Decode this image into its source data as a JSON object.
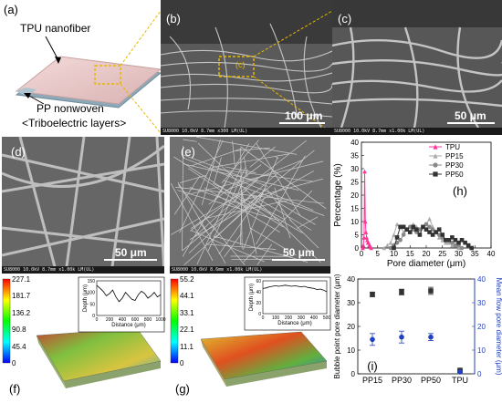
{
  "panel_a": {
    "label": "(a)",
    "tpu_label": "TPU nanofiber",
    "pp_label": "PP nonwoven",
    "layers_label": "<Triboelectric layers>"
  },
  "panel_b": {
    "label": "(b)",
    "zoom_label": "(c)",
    "scale": "100 μm",
    "info": "SU8000 10.0kV 8.7mm x300 LM(UL)"
  },
  "panel_c": {
    "label": "(c)",
    "scale": "50 μm",
    "info": "SU8000 10.0kV 8.7mm x1.00k LM(UL)"
  },
  "panel_d": {
    "label": "(d)",
    "scale": "50 μm",
    "info": "SU8000 10.0kV 8.7mm x1.00k LM(UL)"
  },
  "panel_e": {
    "label": "(e)",
    "scale": "50 μm",
    "info": "SU8000 10.0kV 8.6mm x1.00k LM(UL)"
  },
  "panel_f": {
    "label": "(f)",
    "colorbar": [
      "227.1",
      "181.7",
      "136.2",
      "90.8",
      "45.4",
      "0"
    ],
    "colorbar_colors": [
      "#ff0000",
      "#ffff00",
      "#00ff00",
      "#00ffff",
      "#0000ff"
    ]
  },
  "panel_g": {
    "label": "(g)",
    "colorbar": [
      "55.2",
      "44.1",
      "33.1",
      "22.1",
      "11.1",
      "0"
    ],
    "colorbar_colors": [
      "#ff0000",
      "#ffff00",
      "#00ff00",
      "#00ffff",
      "#0000ff"
    ]
  },
  "chart_data": [
    {
      "id": "h",
      "type": "line",
      "panel_label": "(h)",
      "xlabel": "Pore diameter (μm)",
      "ylabel": "Percentage (%)",
      "xlim": [
        0,
        40
      ],
      "ylim": [
        0,
        40
      ],
      "xticks": [
        "0",
        "5",
        "10",
        "15",
        "20",
        "25",
        "30",
        "35",
        "40"
      ],
      "yticks": [
        "0",
        "5",
        "10",
        "15",
        "20",
        "25",
        "30",
        "35",
        "40"
      ],
      "legend_position": "top-right",
      "series": [
        {
          "name": "TPU",
          "color": "#ff3399",
          "marker": "triangle",
          "x": [
            0.4,
            0.6,
            0.8,
            1.0,
            1.2,
            1.4,
            1.6,
            1.8,
            2.0,
            2.2,
            2.4,
            2.6,
            2.8,
            3.0
          ],
          "y": [
            0,
            1,
            4,
            29,
            10,
            6,
            4,
            3,
            2,
            2,
            1,
            1,
            0.5,
            0
          ]
        },
        {
          "name": "PP15",
          "color": "#aaaaaa",
          "marker": "triangle",
          "x": [
            7,
            8,
            9,
            10,
            11,
            12,
            13,
            14,
            15,
            16,
            17,
            18,
            19,
            20,
            21,
            22,
            23,
            24,
            25,
            26,
            27,
            28,
            29,
            30
          ],
          "y": [
            0,
            1,
            2,
            5,
            9,
            8,
            6,
            7,
            8,
            9,
            8,
            7,
            8,
            9,
            11,
            8,
            6,
            4,
            3,
            2,
            2,
            1,
            1,
            0
          ]
        },
        {
          "name": "PP30",
          "color": "#888888",
          "marker": "circle",
          "x": [
            9,
            10,
            11,
            12,
            13,
            14,
            15,
            16,
            17,
            18,
            19,
            20,
            21,
            22,
            23,
            24,
            25,
            26,
            27,
            28,
            29,
            30,
            31
          ],
          "y": [
            0,
            1,
            2,
            3,
            5,
            7,
            8,
            7,
            6,
            7,
            8,
            9,
            8,
            7,
            6,
            5,
            4,
            3,
            3,
            2,
            1,
            1,
            0
          ]
        },
        {
          "name": "PP50",
          "color": "#333333",
          "marker": "square",
          "x": [
            10,
            11,
            12,
            13,
            14,
            15,
            16,
            17,
            18,
            19,
            20,
            21,
            22,
            23,
            24,
            25,
            26,
            27,
            28,
            29,
            30,
            31,
            32,
            33,
            34
          ],
          "y": [
            0,
            4,
            8,
            8,
            7,
            6,
            8,
            7,
            5,
            8,
            7,
            6,
            5,
            6,
            7,
            5,
            3,
            3,
            4,
            3,
            2,
            3,
            2,
            1,
            0
          ]
        }
      ]
    },
    {
      "id": "i",
      "type": "scatter",
      "panel_label": "(i)",
      "categories": [
        "PP15",
        "PP30",
        "PP50",
        "TPU"
      ],
      "ylabel_left": "Bubble point pore diameter (μm)",
      "ylabel_right": "Mean flow pore diameter (μm)",
      "ylim_left": [
        0,
        40
      ],
      "ylim_right": [
        0,
        40
      ],
      "yticks": [
        "0",
        "10",
        "20",
        "30",
        "40"
      ],
      "series": [
        {
          "name": "Bubble point pore diameter",
          "axis": "left",
          "color": "#333333",
          "marker": "square",
          "values": [
            33.5,
            34.5,
            35.0,
            1.5
          ],
          "errors": [
            1.0,
            1.2,
            1.5,
            0.3
          ]
        },
        {
          "name": "Mean flow pore diameter",
          "axis": "right",
          "color": "#1f3fbf",
          "marker": "circle",
          "values": [
            14.5,
            15.5,
            15.5,
            0.8
          ],
          "errors": [
            2.5,
            2.5,
            1.5,
            0.3
          ]
        }
      ]
    },
    {
      "id": "f_inset",
      "type": "line",
      "xlabel": "Distance (μm)",
      "ylabel": "Depth (μm)",
      "xlim": [
        0,
        1000
      ],
      "ylim": [
        0,
        150
      ],
      "xticks": [
        "0",
        "200",
        "400",
        "600",
        "800",
        "1000"
      ],
      "yticks": [
        "0",
        "50",
        "100",
        "150"
      ],
      "series": [
        {
          "x": [
            0,
            50,
            100,
            150,
            200,
            250,
            300,
            350,
            400,
            450,
            500,
            550,
            600,
            650,
            700,
            750,
            800,
            850,
            900,
            950,
            1000
          ],
          "y": [
            130,
            118,
            105,
            85,
            95,
            110,
            80,
            60,
            75,
            100,
            85,
            70,
            65,
            90,
            105,
            95,
            75,
            85,
            100,
            80,
            90
          ]
        }
      ]
    },
    {
      "id": "g_inset",
      "type": "line",
      "xlabel": "Distance (μm)",
      "ylabel": "Depth (μm)",
      "xlim": [
        0,
        500
      ],
      "ylim": [
        0,
        60
      ],
      "xticks": [
        "0",
        "100",
        "200",
        "300",
        "400",
        "500"
      ],
      "yticks": [
        "0",
        "20",
        "40",
        "60"
      ],
      "series": [
        {
          "x": [
            0,
            25,
            50,
            75,
            100,
            125,
            150,
            175,
            200,
            225,
            250,
            275,
            300,
            325,
            350,
            375,
            400,
            425,
            450,
            475,
            500
          ],
          "y": [
            46,
            47,
            49,
            50,
            51,
            50,
            51,
            52,
            51,
            50,
            51,
            50,
            49,
            50,
            48,
            47,
            46,
            44,
            45,
            43,
            40
          ]
        }
      ]
    }
  ]
}
